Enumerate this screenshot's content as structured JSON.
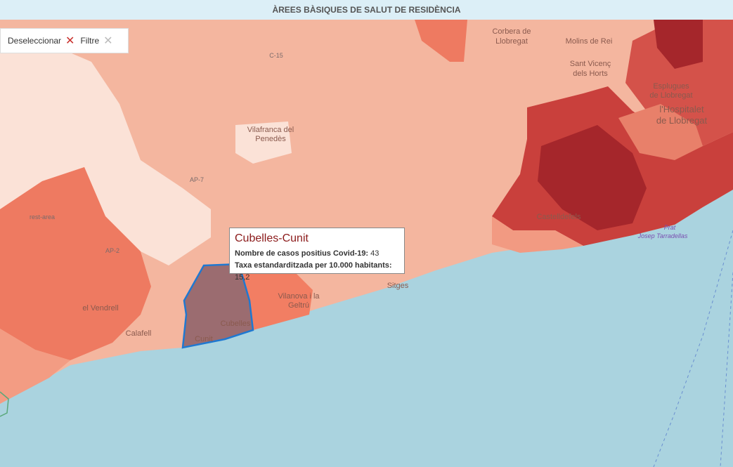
{
  "header": {
    "title": "ÀREES BÀSIQUES DE SALUT DE RESIDÈNCIA"
  },
  "controls": {
    "deselect": "Deseleccionar",
    "filter": "Filtre"
  },
  "tooltip": {
    "title": "Cubelles-Cunit",
    "rows": [
      {
        "label": "Nombre de casos positius Covid-19:",
        "value": 43
      },
      {
        "label": "Taxa estandarditzada per 10.000 habitants:",
        "value": "15,2"
      }
    ]
  },
  "map_labels": [
    "Corbera de",
    "Llobregat",
    "Molins de Rei",
    "Sant Vicenç",
    "dels Horts",
    "Esplugues",
    "de Llobregat",
    "l'Hospitalet",
    "de Llobregat",
    "Vilafranca del",
    "Penedès",
    "el Vendrell",
    "Calafell",
    "Cubelles",
    "Cunit",
    "Vilanova i la",
    "Geltrú",
    "Sitges",
    "Castelldefels",
    "Prat",
    "Josep Tarradellas",
    "C-15",
    "AP-7",
    "AP-2",
    "rest-area"
  ]
}
